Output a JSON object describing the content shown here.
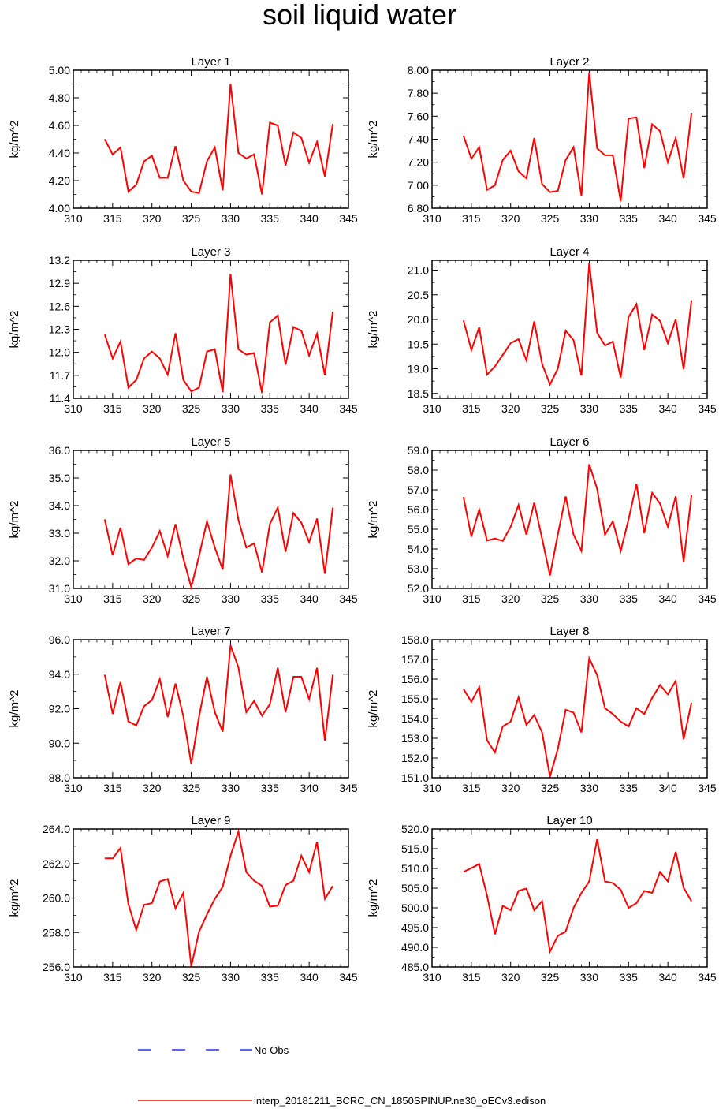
{
  "title": "soil liquid water",
  "legend": [
    {
      "label": "No Obs",
      "color": "#0000ff",
      "style": "dashed"
    },
    {
      "label": "interp_20181211_BCRC_CN_1850SPINUP.ne30_oECv3.edison",
      "color": "#ff0000",
      "style": "solid"
    }
  ],
  "chart_data": [
    {
      "type": "line",
      "title": "Layer 1",
      "ylabel": "kg/m^2",
      "xlim": [
        310,
        345
      ],
      "xticks": [
        310,
        315,
        320,
        325,
        330,
        335,
        340,
        345
      ],
      "ylim": [
        4.0,
        5.0
      ],
      "yticks": [
        "4.00",
        "4.20",
        "4.40",
        "4.60",
        "4.80",
        "5.00"
      ],
      "x": [
        314,
        315,
        316,
        317,
        318,
        319,
        320,
        321,
        322,
        323,
        324,
        325,
        326,
        327,
        328,
        329,
        330,
        331,
        332,
        333,
        334,
        335,
        336,
        337,
        338,
        339,
        340,
        341,
        342,
        343
      ],
      "series": [
        {
          "color": "#ff0000",
          "values": [
            4.5,
            4.39,
            4.44,
            4.12,
            4.17,
            4.34,
            4.38,
            4.22,
            4.22,
            4.45,
            4.2,
            4.12,
            4.11,
            4.34,
            4.44,
            4.13,
            4.9,
            4.4,
            4.36,
            4.39,
            4.1,
            4.62,
            4.6,
            4.31,
            4.55,
            4.51,
            4.33,
            4.48,
            4.23,
            4.61
          ]
        }
      ]
    },
    {
      "type": "line",
      "title": "Layer 2",
      "ylabel": "kg/m^2",
      "xlim": [
        310,
        345
      ],
      "xticks": [
        310,
        315,
        320,
        325,
        330,
        335,
        340,
        345
      ],
      "ylim": [
        6.8,
        8.0
      ],
      "yticks": [
        "6.80",
        "7.00",
        "7.20",
        "7.40",
        "7.60",
        "7.80",
        "8.00"
      ],
      "x": [
        314,
        315,
        316,
        317,
        318,
        319,
        320,
        321,
        322,
        323,
        324,
        325,
        326,
        327,
        328,
        329,
        330,
        331,
        332,
        333,
        334,
        335,
        336,
        337,
        338,
        339,
        340,
        341,
        342,
        343
      ],
      "series": [
        {
          "color": "#ff0000",
          "values": [
            7.43,
            7.23,
            7.33,
            6.96,
            7.0,
            7.22,
            7.3,
            7.12,
            7.06,
            7.41,
            7.01,
            6.94,
            6.95,
            7.22,
            7.33,
            6.91,
            7.98,
            7.32,
            7.26,
            7.26,
            6.86,
            7.58,
            7.59,
            7.15,
            7.53,
            7.47,
            7.2,
            7.41,
            7.06,
            7.63
          ]
        }
      ]
    },
    {
      "type": "line",
      "title": "Layer 3",
      "ylabel": "kg/m^2",
      "xlim": [
        310,
        345
      ],
      "xticks": [
        310,
        315,
        320,
        325,
        330,
        335,
        340,
        345
      ],
      "ylim": [
        11.4,
        13.2
      ],
      "yticks": [
        "11.4",
        "11.7",
        "12.0",
        "12.3",
        "12.6",
        "12.9",
        "13.2"
      ],
      "x": [
        314,
        315,
        316,
        317,
        318,
        319,
        320,
        321,
        322,
        323,
        324,
        325,
        326,
        327,
        328,
        329,
        330,
        331,
        332,
        333,
        334,
        335,
        336,
        337,
        338,
        339,
        340,
        341,
        342,
        343
      ],
      "series": [
        {
          "color": "#ff0000",
          "values": [
            12.23,
            11.92,
            12.14,
            11.54,
            11.64,
            11.92,
            12.01,
            11.92,
            11.71,
            12.25,
            11.64,
            11.49,
            11.54,
            12.01,
            12.04,
            11.48,
            13.02,
            12.04,
            11.97,
            11.99,
            11.47,
            12.39,
            12.48,
            11.84,
            12.33,
            12.28,
            11.96,
            12.24,
            11.7,
            12.53
          ]
        }
      ]
    },
    {
      "type": "line",
      "title": "Layer 4",
      "ylabel": "kg/m^2",
      "xlim": [
        310,
        345
      ],
      "xticks": [
        310,
        315,
        320,
        325,
        330,
        335,
        340,
        345
      ],
      "ylim": [
        18.4,
        21.2
      ],
      "yticks": [
        "18.5",
        "19.0",
        "19.5",
        "20.0",
        "20.5",
        "21.0"
      ],
      "x": [
        314,
        315,
        316,
        317,
        318,
        319,
        320,
        321,
        322,
        323,
        324,
        325,
        326,
        327,
        328,
        329,
        330,
        331,
        332,
        333,
        334,
        335,
        336,
        337,
        338,
        339,
        340,
        341,
        342,
        343
      ],
      "series": [
        {
          "color": "#ff0000",
          "values": [
            19.98,
            19.38,
            19.84,
            18.88,
            19.05,
            19.28,
            19.52,
            19.6,
            19.17,
            19.96,
            19.1,
            18.68,
            19.0,
            19.77,
            19.58,
            18.86,
            21.15,
            19.73,
            19.47,
            19.55,
            18.82,
            20.05,
            20.31,
            19.38,
            20.1,
            19.97,
            19.52,
            20.0,
            18.99,
            20.39
          ]
        }
      ]
    },
    {
      "type": "line",
      "title": "Layer 5",
      "ylabel": "kg/m^2",
      "xlim": [
        310,
        345
      ],
      "xticks": [
        310,
        315,
        320,
        325,
        330,
        335,
        340,
        345
      ],
      "ylim": [
        31.0,
        36.0
      ],
      "yticks": [
        "31.0",
        "32.0",
        "33.0",
        "34.0",
        "35.0",
        "36.0"
      ],
      "x": [
        314,
        315,
        316,
        317,
        318,
        319,
        320,
        321,
        322,
        323,
        324,
        325,
        326,
        327,
        328,
        329,
        330,
        331,
        332,
        333,
        334,
        335,
        336,
        337,
        338,
        339,
        340,
        341,
        342,
        343
      ],
      "series": [
        {
          "color": "#ff0000",
          "values": [
            33.5,
            32.2,
            33.2,
            31.88,
            32.08,
            32.03,
            32.48,
            33.08,
            32.17,
            33.33,
            32.08,
            31.05,
            32.18,
            33.43,
            32.48,
            31.68,
            35.13,
            33.48,
            32.48,
            32.63,
            31.58,
            33.33,
            33.93,
            32.33,
            33.73,
            33.38,
            32.68,
            33.53,
            31.53,
            33.93
          ]
        }
      ]
    },
    {
      "type": "line",
      "title": "Layer 6",
      "ylabel": "kg/m^2",
      "xlim": [
        310,
        345
      ],
      "xticks": [
        310,
        315,
        320,
        325,
        330,
        335,
        340,
        345
      ],
      "ylim": [
        52.0,
        59.0
      ],
      "yticks": [
        "52.0",
        "53.0",
        "54.0",
        "55.0",
        "56.0",
        "57.0",
        "58.0",
        "59.0"
      ],
      "x": [
        314,
        315,
        316,
        317,
        318,
        319,
        320,
        321,
        322,
        323,
        324,
        325,
        326,
        327,
        328,
        329,
        330,
        331,
        332,
        333,
        334,
        335,
        336,
        337,
        338,
        339,
        340,
        341,
        342,
        343
      ],
      "series": [
        {
          "color": "#ff0000",
          "values": [
            56.63,
            54.63,
            56.0,
            54.43,
            54.53,
            54.41,
            55.13,
            56.23,
            54.73,
            56.35,
            54.53,
            52.66,
            54.73,
            56.67,
            54.73,
            53.9,
            58.3,
            57.05,
            54.73,
            55.4,
            53.9,
            55.5,
            57.3,
            54.8,
            56.85,
            56.3,
            55.13,
            56.67,
            53.35,
            56.73
          ]
        }
      ]
    },
    {
      "type": "line",
      "title": "Layer 7",
      "ylabel": "kg/m^2",
      "xlim": [
        310,
        345
      ],
      "xticks": [
        310,
        315,
        320,
        325,
        330,
        335,
        340,
        345
      ],
      "ylim": [
        88.0,
        96.0
      ],
      "yticks": [
        "88.0",
        "90.0",
        "92.0",
        "94.0",
        "96.0"
      ],
      "x": [
        314,
        315,
        316,
        317,
        318,
        319,
        320,
        321,
        322,
        323,
        324,
        325,
        326,
        327,
        328,
        329,
        330,
        331,
        332,
        333,
        334,
        335,
        336,
        337,
        338,
        339,
        340,
        341,
        342,
        343
      ],
      "series": [
        {
          "color": "#ff0000",
          "values": [
            93.97,
            91.7,
            93.54,
            91.26,
            91.03,
            92.14,
            92.5,
            93.71,
            91.52,
            93.46,
            91.55,
            88.81,
            91.55,
            93.85,
            91.8,
            90.67,
            95.67,
            94.4,
            91.8,
            92.45,
            91.6,
            92.25,
            94.37,
            91.8,
            93.85,
            93.85,
            92.55,
            94.37,
            90.15,
            93.97
          ]
        }
      ]
    },
    {
      "type": "line",
      "title": "Layer 8",
      "ylabel": "kg/m^2",
      "xlim": [
        310,
        345
      ],
      "xticks": [
        310,
        315,
        320,
        325,
        330,
        335,
        340,
        345
      ],
      "ylim": [
        151.0,
        158.0
      ],
      "yticks": [
        "151.0",
        "152.0",
        "153.0",
        "154.0",
        "155.0",
        "156.0",
        "157.0",
        "158.0"
      ],
      "x": [
        314,
        315,
        316,
        317,
        318,
        319,
        320,
        321,
        322,
        323,
        324,
        325,
        326,
        327,
        328,
        329,
        330,
        331,
        332,
        333,
        334,
        335,
        336,
        337,
        338,
        339,
        340,
        341,
        342,
        343
      ],
      "series": [
        {
          "color": "#ff0000",
          "values": [
            155.5,
            154.85,
            155.6,
            152.9,
            152.28,
            153.6,
            153.85,
            155.08,
            153.68,
            154.18,
            153.3,
            151.05,
            152.45,
            154.45,
            154.3,
            153.3,
            157.05,
            156.2,
            154.53,
            154.23,
            153.85,
            153.6,
            154.53,
            154.23,
            155.05,
            155.7,
            155.23,
            155.9,
            152.95,
            154.8
          ]
        }
      ]
    },
    {
      "type": "line",
      "title": "Layer 9",
      "ylabel": "kg/m^2",
      "xlim": [
        310,
        345
      ],
      "xticks": [
        310,
        315,
        320,
        325,
        330,
        335,
        340,
        345
      ],
      "ylim": [
        256.0,
        264.0
      ],
      "yticks": [
        "256.0",
        "258.0",
        "260.0",
        "262.0",
        "264.0"
      ],
      "x": [
        314,
        315,
        316,
        317,
        318,
        319,
        320,
        321,
        322,
        323,
        324,
        325,
        326,
        327,
        328,
        329,
        330,
        331,
        332,
        333,
        334,
        335,
        336,
        337,
        338,
        339,
        340,
        341,
        342,
        343
      ],
      "series": [
        {
          "color": "#ff0000",
          "values": [
            262.3,
            262.3,
            262.9,
            259.65,
            258.15,
            259.6,
            259.7,
            260.95,
            261.1,
            259.4,
            260.3,
            256.05,
            258.05,
            259.05,
            259.95,
            260.65,
            262.45,
            263.85,
            261.5,
            261.0,
            260.7,
            259.5,
            259.55,
            260.75,
            261.0,
            262.45,
            261.5,
            263.25,
            259.95,
            260.7
          ]
        }
      ]
    },
    {
      "type": "line",
      "title": "Layer 10",
      "ylabel": "kg/m^2",
      "xlim": [
        310,
        345
      ],
      "xticks": [
        310,
        315,
        320,
        325,
        330,
        335,
        340,
        345
      ],
      "ylim": [
        485.0,
        520.0
      ],
      "yticks": [
        "485.0",
        "490.0",
        "495.0",
        "500.0",
        "505.0",
        "510.0",
        "515.0",
        "520.0"
      ],
      "x": [
        314,
        316,
        317,
        318,
        319,
        320,
        321,
        322,
        323,
        324,
        325,
        326,
        327,
        328,
        329,
        330,
        331,
        332,
        333,
        334,
        335,
        336,
        337,
        338,
        339,
        340,
        341,
        342,
        343
      ],
      "series": [
        {
          "color": "#ff0000",
          "values": [
            509.1,
            511.1,
            503.1,
            493.3,
            500.5,
            499.4,
            504.3,
            504.9,
            499.4,
            501.7,
            488.9,
            492.9,
            494.0,
            500.0,
            503.8,
            506.7,
            517.4,
            506.7,
            506.3,
            504.6,
            500.0,
            501.2,
            504.3,
            503.8,
            509.1,
            506.7,
            514.2,
            505.1,
            501.7
          ]
        }
      ]
    }
  ]
}
